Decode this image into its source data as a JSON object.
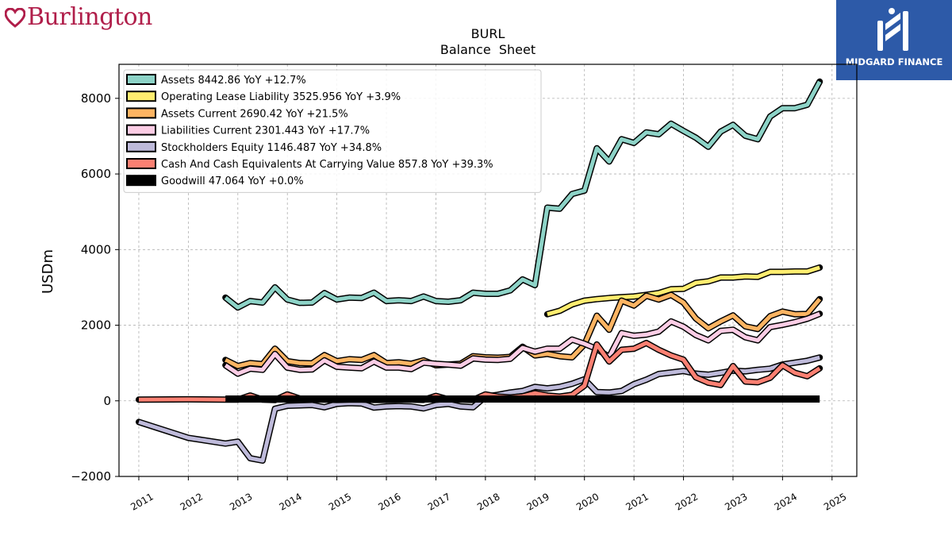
{
  "brand": {
    "name": "Burlington",
    "color": "#b01e4a"
  },
  "publisher": {
    "name": "MIDGARD FINANCE",
    "bg_color": "#2d5aa8"
  },
  "chart_data": {
    "type": "line",
    "title": "BURL",
    "subtitle": "Balance  Sheet",
    "xlabel": "",
    "ylabel": "USDm",
    "xlim": [
      2010.6,
      2025.5
    ],
    "ylim": [
      -2000,
      8900
    ],
    "x_ticks": [
      2011,
      2012,
      2013,
      2014,
      2015,
      2016,
      2017,
      2018,
      2019,
      2020,
      2021,
      2022,
      2023,
      2024,
      2025
    ],
    "x_tick_labels": [
      "2011",
      "2012",
      "2013",
      "2014",
      "2015",
      "2016",
      "2017",
      "2018",
      "2019",
      "2020",
      "2021",
      "2022",
      "2023",
      "2024",
      "2025"
    ],
    "y_ticks": [
      -2000,
      0,
      2000,
      4000,
      6000,
      8000
    ],
    "y_tick_labels": [
      "−2000",
      "0",
      "2000",
      "4000",
      "6000",
      "8000"
    ],
    "grid": true,
    "legend_position": "top-left",
    "series": [
      {
        "name": "Assets",
        "legend": "Assets  8442.86 YoY +12.7%",
        "color": "#8dd3c7",
        "width": 5,
        "points": [
          [
            2012.75,
            2730
          ],
          [
            2013.0,
            2470
          ],
          [
            2013.25,
            2640
          ],
          [
            2013.5,
            2600
          ],
          [
            2013.75,
            3000
          ],
          [
            2014.0,
            2680
          ],
          [
            2014.25,
            2590
          ],
          [
            2014.5,
            2600
          ],
          [
            2014.75,
            2850
          ],
          [
            2015.0,
            2680
          ],
          [
            2015.25,
            2730
          ],
          [
            2015.5,
            2720
          ],
          [
            2015.75,
            2860
          ],
          [
            2016.0,
            2640
          ],
          [
            2016.25,
            2660
          ],
          [
            2016.5,
            2640
          ],
          [
            2016.75,
            2760
          ],
          [
            2017.0,
            2640
          ],
          [
            2017.25,
            2620
          ],
          [
            2017.5,
            2660
          ],
          [
            2017.75,
            2860
          ],
          [
            2018.0,
            2830
          ],
          [
            2018.25,
            2830
          ],
          [
            2018.5,
            2920
          ],
          [
            2018.75,
            3210
          ],
          [
            2019.0,
            3060
          ],
          [
            2019.25,
            5110
          ],
          [
            2019.5,
            5080
          ],
          [
            2019.75,
            5470
          ],
          [
            2020.0,
            5560
          ],
          [
            2020.25,
            6680
          ],
          [
            2020.5,
            6330
          ],
          [
            2020.75,
            6920
          ],
          [
            2021.0,
            6820
          ],
          [
            2021.25,
            7100
          ],
          [
            2021.5,
            7050
          ],
          [
            2021.75,
            7330
          ],
          [
            2022.0,
            7140
          ],
          [
            2022.25,
            6960
          ],
          [
            2022.5,
            6720
          ],
          [
            2022.75,
            7120
          ],
          [
            2023.0,
            7300
          ],
          [
            2023.25,
            7010
          ],
          [
            2023.5,
            6920
          ],
          [
            2023.75,
            7520
          ],
          [
            2024.0,
            7740
          ],
          [
            2024.25,
            7740
          ],
          [
            2024.5,
            7830
          ],
          [
            2024.75,
            8442.86
          ]
        ]
      },
      {
        "name": "Operating Lease Liability",
        "legend": "Operating Lease Liability  3525.956 YoY +3.9%",
        "color": "#ffed6f",
        "width": 5,
        "points": [
          [
            2019.25,
            2290
          ],
          [
            2019.5,
            2380
          ],
          [
            2019.75,
            2550
          ],
          [
            2020.0,
            2650
          ],
          [
            2020.25,
            2690
          ],
          [
            2020.5,
            2720
          ],
          [
            2020.75,
            2740
          ],
          [
            2021.0,
            2760
          ],
          [
            2021.25,
            2800
          ],
          [
            2021.5,
            2850
          ],
          [
            2021.75,
            2950
          ],
          [
            2022.0,
            2960
          ],
          [
            2022.25,
            3120
          ],
          [
            2022.5,
            3160
          ],
          [
            2022.75,
            3260
          ],
          [
            2023.0,
            3260
          ],
          [
            2023.25,
            3290
          ],
          [
            2023.5,
            3280
          ],
          [
            2023.75,
            3410
          ],
          [
            2024.0,
            3410
          ],
          [
            2024.25,
            3420
          ],
          [
            2024.5,
            3420
          ],
          [
            2024.75,
            3525.956
          ]
        ]
      },
      {
        "name": "Assets Current",
        "legend": "Assets Current  2690.42 YoY +21.5%",
        "color": "#fdb462",
        "width": 5,
        "points": [
          [
            2012.75,
            1080
          ],
          [
            2013.0,
            920
          ],
          [
            2013.25,
            1000
          ],
          [
            2013.5,
            970
          ],
          [
            2013.75,
            1380
          ],
          [
            2014.0,
            1050
          ],
          [
            2014.25,
            1000
          ],
          [
            2014.5,
            990
          ],
          [
            2014.75,
            1210
          ],
          [
            2015.0,
            1050
          ],
          [
            2015.25,
            1100
          ],
          [
            2015.5,
            1080
          ],
          [
            2015.75,
            1210
          ],
          [
            2016.0,
            1000
          ],
          [
            2016.25,
            1020
          ],
          [
            2016.5,
            980
          ],
          [
            2016.75,
            1070
          ],
          [
            2017.0,
            940
          ],
          [
            2017.25,
            960
          ],
          [
            2017.5,
            980
          ],
          [
            2017.75,
            1180
          ],
          [
            2018.0,
            1150
          ],
          [
            2018.25,
            1140
          ],
          [
            2018.5,
            1160
          ],
          [
            2018.75,
            1430
          ],
          [
            2019.0,
            1200
          ],
          [
            2019.25,
            1240
          ],
          [
            2019.5,
            1180
          ],
          [
            2019.75,
            1150
          ],
          [
            2020.0,
            1490
          ],
          [
            2020.25,
            2250
          ],
          [
            2020.5,
            1880
          ],
          [
            2020.75,
            2650
          ],
          [
            2021.0,
            2520
          ],
          [
            2021.25,
            2780
          ],
          [
            2021.5,
            2680
          ],
          [
            2021.75,
            2800
          ],
          [
            2022.0,
            2600
          ],
          [
            2022.25,
            2180
          ],
          [
            2022.5,
            1920
          ],
          [
            2022.75,
            2100
          ],
          [
            2023.0,
            2260
          ],
          [
            2023.25,
            1970
          ],
          [
            2023.5,
            1900
          ],
          [
            2023.75,
            2240
          ],
          [
            2024.0,
            2360
          ],
          [
            2024.25,
            2290
          ],
          [
            2024.5,
            2300
          ],
          [
            2024.75,
            2690.42
          ]
        ]
      },
      {
        "name": "Liabilities Current",
        "legend": "Liabilities Current  2301.443 YoY +17.7%",
        "color": "#fccde5",
        "width": 5,
        "points": [
          [
            2012.75,
            940
          ],
          [
            2013.0,
            720
          ],
          [
            2013.25,
            850
          ],
          [
            2013.5,
            820
          ],
          [
            2013.75,
            1240
          ],
          [
            2014.0,
            880
          ],
          [
            2014.25,
            820
          ],
          [
            2014.5,
            830
          ],
          [
            2014.75,
            1070
          ],
          [
            2015.0,
            900
          ],
          [
            2015.25,
            880
          ],
          [
            2015.5,
            860
          ],
          [
            2015.75,
            1040
          ],
          [
            2016.0,
            880
          ],
          [
            2016.25,
            880
          ],
          [
            2016.5,
            840
          ],
          [
            2016.75,
            1010
          ],
          [
            2017.0,
            980
          ],
          [
            2017.25,
            960
          ],
          [
            2017.5,
            930
          ],
          [
            2017.75,
            1120
          ],
          [
            2018.0,
            1090
          ],
          [
            2018.25,
            1080
          ],
          [
            2018.5,
            1110
          ],
          [
            2018.75,
            1400
          ],
          [
            2019.0,
            1300
          ],
          [
            2019.25,
            1380
          ],
          [
            2019.5,
            1380
          ],
          [
            2019.75,
            1620
          ],
          [
            2020.0,
            1510
          ],
          [
            2020.25,
            1370
          ],
          [
            2020.5,
            1160
          ],
          [
            2020.75,
            1790
          ],
          [
            2021.0,
            1720
          ],
          [
            2021.25,
            1750
          ],
          [
            2021.5,
            1830
          ],
          [
            2021.75,
            2100
          ],
          [
            2022.0,
            1960
          ],
          [
            2022.25,
            1740
          ],
          [
            2022.5,
            1600
          ],
          [
            2022.75,
            1850
          ],
          [
            2023.0,
            1880
          ],
          [
            2023.25,
            1680
          ],
          [
            2023.5,
            1600
          ],
          [
            2023.75,
            1950
          ],
          [
            2024.0,
            2010
          ],
          [
            2024.25,
            2080
          ],
          [
            2024.5,
            2170
          ],
          [
            2024.75,
            2301.443
          ]
        ]
      },
      {
        "name": "Stockholders Equity",
        "legend": "Stockholders Equity  1146.487 YoY +34.8%",
        "color": "#bebada",
        "width": 5,
        "points": [
          [
            2011.0,
            -560
          ],
          [
            2012.0,
            -980
          ],
          [
            2012.75,
            -1130
          ],
          [
            2013.0,
            -1080
          ],
          [
            2013.25,
            -1520
          ],
          [
            2013.5,
            -1580
          ],
          [
            2013.75,
            -210
          ],
          [
            2014.0,
            -130
          ],
          [
            2014.25,
            -120
          ],
          [
            2014.5,
            -110
          ],
          [
            2014.75,
            -170
          ],
          [
            2015.0,
            -80
          ],
          [
            2015.25,
            -60
          ],
          [
            2015.5,
            -70
          ],
          [
            2015.75,
            -180
          ],
          [
            2016.0,
            -150
          ],
          [
            2016.25,
            -140
          ],
          [
            2016.5,
            -150
          ],
          [
            2016.75,
            -200
          ],
          [
            2017.0,
            -110
          ],
          [
            2017.25,
            -80
          ],
          [
            2017.5,
            -150
          ],
          [
            2017.75,
            -170
          ],
          [
            2018.0,
            110
          ],
          [
            2018.25,
            160
          ],
          [
            2018.5,
            220
          ],
          [
            2018.75,
            260
          ],
          [
            2019.0,
            370
          ],
          [
            2019.25,
            330
          ],
          [
            2019.5,
            370
          ],
          [
            2019.75,
            450
          ],
          [
            2020.0,
            570
          ],
          [
            2020.25,
            230
          ],
          [
            2020.5,
            220
          ],
          [
            2020.75,
            260
          ],
          [
            2021.0,
            440
          ],
          [
            2021.25,
            560
          ],
          [
            2021.5,
            710
          ],
          [
            2021.75,
            750
          ],
          [
            2022.0,
            790
          ],
          [
            2022.25,
            720
          ],
          [
            2022.5,
            690
          ],
          [
            2022.75,
            740
          ],
          [
            2023.0,
            800
          ],
          [
            2023.25,
            780
          ],
          [
            2023.5,
            820
          ],
          [
            2023.75,
            850
          ],
          [
            2024.0,
            960
          ],
          [
            2024.25,
            1010
          ],
          [
            2024.5,
            1060
          ],
          [
            2024.75,
            1146.487
          ]
        ]
      },
      {
        "name": "Cash And Cash Equivalents At Carrying Value",
        "legend": "Cash And Cash Equivalents At Carrying Value  857.8 YoY +39.3%",
        "color": "#fb8072",
        "width": 5,
        "points": [
          [
            2011.0,
            30
          ],
          [
            2012.0,
            40
          ],
          [
            2012.75,
            30
          ],
          [
            2013.0,
            30
          ],
          [
            2013.25,
            140
          ],
          [
            2013.5,
            30
          ],
          [
            2013.75,
            20
          ],
          [
            2014.0,
            170
          ],
          [
            2014.25,
            60
          ],
          [
            2014.5,
            30
          ],
          [
            2014.75,
            30
          ],
          [
            2015.0,
            25
          ],
          [
            2015.25,
            30
          ],
          [
            2015.5,
            30
          ],
          [
            2015.75,
            25
          ],
          [
            2016.0,
            25
          ],
          [
            2016.25,
            30
          ],
          [
            2016.5,
            30
          ],
          [
            2016.75,
            25
          ],
          [
            2017.0,
            130
          ],
          [
            2017.25,
            40
          ],
          [
            2017.5,
            30
          ],
          [
            2017.75,
            25
          ],
          [
            2018.0,
            170
          ],
          [
            2018.25,
            110
          ],
          [
            2018.5,
            90
          ],
          [
            2018.75,
            120
          ],
          [
            2019.0,
            200
          ],
          [
            2019.25,
            140
          ],
          [
            2019.5,
            110
          ],
          [
            2019.75,
            160
          ],
          [
            2020.0,
            400
          ],
          [
            2020.25,
            1490
          ],
          [
            2020.5,
            1040
          ],
          [
            2020.75,
            1350
          ],
          [
            2021.0,
            1380
          ],
          [
            2021.25,
            1530
          ],
          [
            2021.5,
            1350
          ],
          [
            2021.75,
            1200
          ],
          [
            2022.0,
            1090
          ],
          [
            2022.25,
            620
          ],
          [
            2022.5,
            480
          ],
          [
            2022.75,
            420
          ],
          [
            2023.0,
            920
          ],
          [
            2023.25,
            510
          ],
          [
            2023.5,
            490
          ],
          [
            2023.75,
            610
          ],
          [
            2024.0,
            940
          ],
          [
            2024.25,
            740
          ],
          [
            2024.5,
            650
          ],
          [
            2024.75,
            857.8
          ]
        ]
      },
      {
        "name": "Goodwill",
        "legend": "Goodwill  47.064 YoY +0.0%",
        "color": "#000000",
        "width": 9,
        "points": [
          [
            2012.75,
            47.064
          ],
          [
            2024.75,
            47.064
          ]
        ]
      }
    ]
  }
}
